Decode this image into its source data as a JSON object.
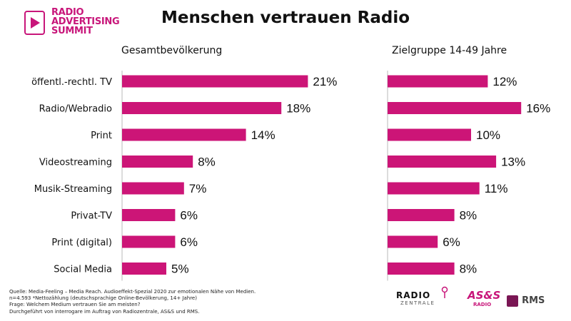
{
  "logo": {
    "line1": "RADIO",
    "line2": "ADVERTISING",
    "line3": "SUMMIT"
  },
  "title": "Menschen vertrauen Radio",
  "colors": {
    "bar": "#cc1577",
    "brand": "#c8167a"
  },
  "chart_data": [
    {
      "type": "bar",
      "orientation": "horizontal",
      "title": "Gesamtbevölkerung",
      "categories": [
        "öffentl.-rechtl. TV",
        "Radio/Webradio",
        "Print",
        "Videostreaming",
        "Musik-Streaming",
        "Privat-TV",
        "Print (digital)",
        "Social Media"
      ],
      "values": [
        21,
        18,
        14,
        8,
        7,
        6,
        6,
        5
      ],
      "value_labels": [
        "21%",
        "18%",
        "14%",
        "8%",
        "7%",
        "6%",
        "6%",
        "5%"
      ],
      "unit": "%"
    },
    {
      "type": "bar",
      "orientation": "horizontal",
      "title": "Zielgruppe 14-49 Jahre",
      "categories": [
        "öffentl.-rechtl. TV",
        "Radio/Webradio",
        "Print",
        "Videostreaming",
        "Musik-Streaming",
        "Privat-TV",
        "Print (digital)",
        "Social Media"
      ],
      "values": [
        12,
        16,
        10,
        13,
        11,
        8,
        6,
        8
      ],
      "value_labels": [
        "12%",
        "16%",
        "10%",
        "13%",
        "11%",
        "8%",
        "6%",
        "8%"
      ],
      "unit": "%"
    }
  ],
  "footnote": {
    "line1": "Quelle: Media-Feeling – Media Reach. Audioeffekt-Spezial 2020 zur emotionalen Nähe von Medien.",
    "line2": "n=4.593 *Nettozählung (deutschsprachige Online-Bevölkerung, 14+ Jahre)",
    "line3": "Frage: Welchem Medium vertrauen Sie am meisten?",
    "line4": "Durchgeführt von interrogare im Auftrag von Radiozentrale, AS&S und RMS."
  },
  "footer_logos": {
    "radiozentrale_top": "RADIO",
    "radiozentrale_bottom": "ZENTRALE",
    "ass_top": "AS&S",
    "ass_bottom": "RADIO",
    "rms": "RMS"
  }
}
